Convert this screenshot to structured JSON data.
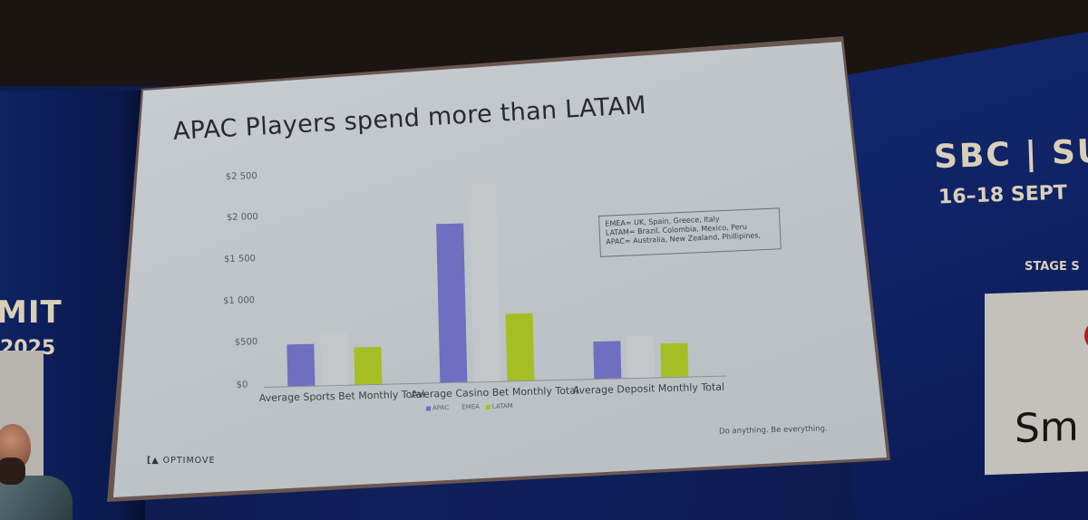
{
  "slide": {
    "title": "APAC Players spend more than LATAM",
    "note_lines": [
      "EMEA= UK, Spain, Greece, Italy",
      "LATAM= Brazil, Colombia, Mexico, Peru",
      "APAC= Australia, New Zealand, Phillipines,"
    ],
    "tagline": "Do anything. Be everything.",
    "logo_text": "OPTIMOVE",
    "logo_mark": "[▲"
  },
  "stage": {
    "left_banner_line1": "MIT",
    "left_banner_line2": "2025",
    "right_banner_line1": "SBC | SU",
    "right_banner_line2": "16–18 SEPT",
    "right_banner_line3": "STAGE S",
    "right_card_text": "Sm"
  },
  "colors": {
    "apac": "#6e6fc0",
    "emea": "#c3c7ca",
    "latam": "#a4be24"
  },
  "chart_data": {
    "type": "bar",
    "title": "APAC Players spend more than LATAM",
    "xlabel": "",
    "ylabel": "",
    "categories": [
      "Average Sports Bet Monthly Total",
      "Average Casino Bet Monthly Total",
      "Average Deposit Monthly Total"
    ],
    "series": [
      {
        "name": "APAC",
        "values": [
          500,
          1900,
          450
        ]
      },
      {
        "name": "EMEA",
        "values": [
          650,
          2400,
          500
        ]
      },
      {
        "name": "LATAM",
        "values": [
          450,
          800,
          400
        ]
      }
    ],
    "yticks": [
      "$0",
      "$500",
      "$1 000",
      "$1 500",
      "$2 000",
      "$2 500"
    ],
    "ylim": [
      0,
      2500
    ],
    "grid": false,
    "legend_position": "bottom",
    "annotation": "EMEA= UK, Spain, Greece, Italy / LATAM= Brazil, Colombia, Mexico, Peru / APAC= Australia, New Zealand, Phillipines,"
  }
}
